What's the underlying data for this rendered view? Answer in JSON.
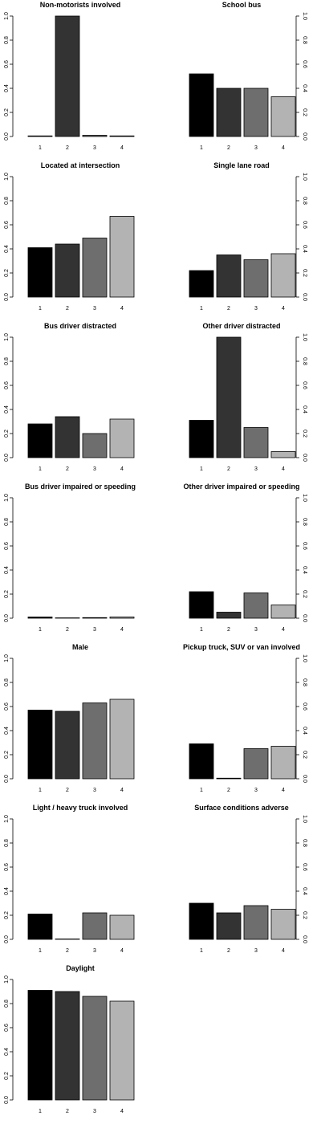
{
  "colors": {
    "series": [
      "#000000",
      "#333333",
      "#6e6e6e",
      "#b3b3b3"
    ],
    "stroke": "#000000",
    "background": "#ffffff"
  },
  "chart_data": [
    {
      "type": "bar",
      "title": "Non-motorists involved",
      "categories": [
        "1",
        "2",
        "3",
        "4"
      ],
      "values": [
        0.005,
        1.0,
        0.01,
        0.005
      ],
      "ylim": [
        0,
        1
      ],
      "yticks": [
        "0.0",
        "0.2",
        "0.4",
        "0.6",
        "0.8",
        "1.0"
      ],
      "y_axis_side": "left",
      "grid": false
    },
    {
      "type": "bar",
      "title": "School bus",
      "categories": [
        "1",
        "2",
        "3",
        "4"
      ],
      "values": [
        0.52,
        0.4,
        0.4,
        0.33
      ],
      "ylim": [
        0,
        1
      ],
      "yticks": [
        "0.0",
        "0.2",
        "0.4",
        "0.6",
        "0.8",
        "1.0"
      ],
      "y_axis_side": "right",
      "grid": false
    },
    {
      "type": "bar",
      "title": "Located at intersection",
      "categories": [
        "1",
        "2",
        "3",
        "4"
      ],
      "values": [
        0.41,
        0.44,
        0.49,
        0.67
      ],
      "ylim": [
        0,
        1
      ],
      "yticks": [
        "0.0",
        "0.2",
        "0.4",
        "0.6",
        "0.8",
        "1.0"
      ],
      "y_axis_side": "left",
      "grid": false
    },
    {
      "type": "bar",
      "title": "Single lane road",
      "categories": [
        "1",
        "2",
        "3",
        "4"
      ],
      "values": [
        0.22,
        0.35,
        0.31,
        0.36
      ],
      "ylim": [
        0,
        1
      ],
      "yticks": [
        "0.0",
        "0.2",
        "0.4",
        "0.6",
        "0.8",
        "1.0"
      ],
      "y_axis_side": "right",
      "grid": false
    },
    {
      "type": "bar",
      "title": "Bus driver distracted",
      "categories": [
        "1",
        "2",
        "3",
        "4"
      ],
      "values": [
        0.28,
        0.34,
        0.2,
        0.32
      ],
      "ylim": [
        0,
        1
      ],
      "yticks": [
        "0.0",
        "0.2",
        "0.4",
        "0.6",
        "0.8",
        "1.0"
      ],
      "y_axis_side": "left",
      "grid": false
    },
    {
      "type": "bar",
      "title": "Other driver distracted",
      "categories": [
        "1",
        "2",
        "3",
        "4"
      ],
      "values": [
        0.31,
        1.0,
        0.25,
        0.05
      ],
      "ylim": [
        0,
        1
      ],
      "yticks": [
        "0.0",
        "0.2",
        "0.4",
        "0.6",
        "0.8",
        "1.0"
      ],
      "y_axis_side": "right",
      "grid": false
    },
    {
      "type": "bar",
      "title": "Bus driver impaired or speeding",
      "categories": [
        "1",
        "2",
        "3",
        "4"
      ],
      "values": [
        0.01,
        0.003,
        0.005,
        0.01
      ],
      "ylim": [
        0,
        1
      ],
      "yticks": [
        "0.0",
        "0.2",
        "0.4",
        "0.6",
        "0.8",
        "1.0"
      ],
      "y_axis_side": "left",
      "grid": false
    },
    {
      "type": "bar",
      "title": "Other driver impaired or speeding",
      "categories": [
        "1",
        "2",
        "3",
        "4"
      ],
      "values": [
        0.22,
        0.05,
        0.21,
        0.11
      ],
      "ylim": [
        0,
        1
      ],
      "yticks": [
        "0.0",
        "0.2",
        "0.4",
        "0.6",
        "0.8",
        "1.0"
      ],
      "y_axis_side": "right",
      "grid": false
    },
    {
      "type": "bar",
      "title": "Male",
      "categories": [
        "1",
        "2",
        "3",
        "4"
      ],
      "values": [
        0.57,
        0.56,
        0.63,
        0.66
      ],
      "ylim": [
        0,
        1
      ],
      "yticks": [
        "0.0",
        "0.2",
        "0.4",
        "0.6",
        "0.8",
        "1.0"
      ],
      "y_axis_side": "left",
      "grid": false
    },
    {
      "type": "bar",
      "title": "Pickup truck, SUV or van involved",
      "categories": [
        "1",
        "2",
        "3",
        "4"
      ],
      "values": [
        0.29,
        0.005,
        0.25,
        0.27
      ],
      "ylim": [
        0,
        1
      ],
      "yticks": [
        "0.0",
        "0.2",
        "0.4",
        "0.6",
        "0.8",
        "1.0"
      ],
      "y_axis_side": "right",
      "grid": false
    },
    {
      "type": "bar",
      "title": "Light / heavy truck involved",
      "categories": [
        "1",
        "2",
        "3",
        "4"
      ],
      "values": [
        0.21,
        0.003,
        0.22,
        0.2
      ],
      "ylim": [
        0,
        1
      ],
      "yticks": [
        "0.0",
        "0.2",
        "0.4",
        "0.6",
        "0.8",
        "1.0"
      ],
      "y_axis_side": "left",
      "grid": false
    },
    {
      "type": "bar",
      "title": "Surface conditions adverse",
      "categories": [
        "1",
        "2",
        "3",
        "4"
      ],
      "values": [
        0.3,
        0.22,
        0.28,
        0.25
      ],
      "ylim": [
        0,
        1
      ],
      "yticks": [
        "0.0",
        "0.2",
        "0.4",
        "0.6",
        "0.8",
        "1.0"
      ],
      "y_axis_side": "right",
      "grid": false
    },
    {
      "type": "bar",
      "title": "Daylight",
      "categories": [
        "1",
        "2",
        "3",
        "4"
      ],
      "values": [
        0.91,
        0.9,
        0.86,
        0.82
      ],
      "ylim": [
        0,
        1
      ],
      "yticks": [
        "0.0",
        "0.2",
        "0.4",
        "0.6",
        "0.8",
        "1.0"
      ],
      "y_axis_side": "left",
      "grid": false
    }
  ]
}
